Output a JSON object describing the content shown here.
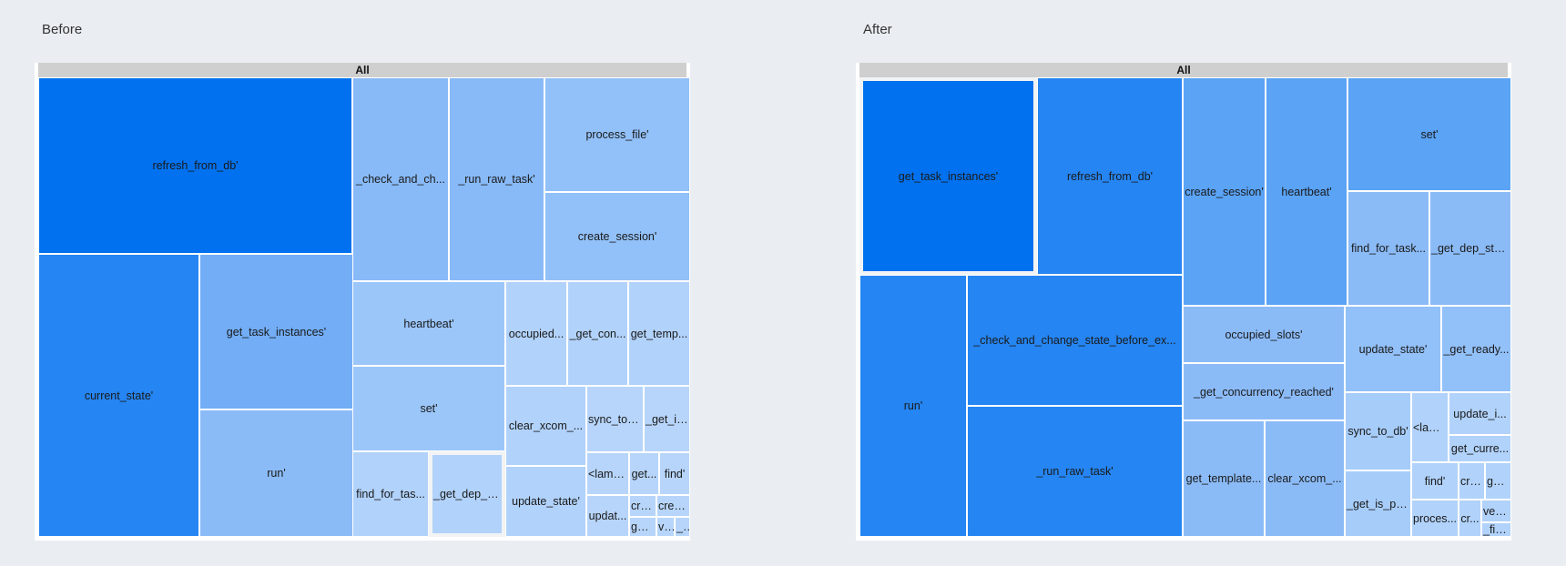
{
  "header_label": "All",
  "chart_data": [
    {
      "type": "treemap",
      "title": "Before",
      "root": "All",
      "nodes": [
        {
          "label": "refresh_from_db'",
          "color": "#0171ef"
        },
        {
          "label": "current_state'",
          "color": "#2585f2"
        },
        {
          "label": "get_task_instances'",
          "color": "#72adf6"
        },
        {
          "label": "run'",
          "color": "#8bbbf7"
        },
        {
          "label": "_check_and_ch...",
          "color": "#88baf7"
        },
        {
          "label": "_run_raw_task'",
          "color": "#88baf7"
        },
        {
          "label": "process_file'",
          "color": "#92c0f8"
        },
        {
          "label": "create_session'",
          "color": "#92c0f8"
        },
        {
          "label": "heartbeat'",
          "color": "#9bc6f9"
        },
        {
          "label": "set'",
          "color": "#9bc6f9"
        },
        {
          "label": "find_for_tas...",
          "color": "#b1d2fa"
        },
        {
          "label": "_get_dep_st...",
          "color": "#b1d2fa",
          "selected": true
        },
        {
          "label": "occupied...",
          "color": "#b1d2fa"
        },
        {
          "label": "_get_con...",
          "color": "#b1d2fa"
        },
        {
          "label": "get_temp...",
          "color": "#b1d2fa"
        },
        {
          "label": "clear_xcom_...",
          "color": "#b1d2fa"
        },
        {
          "label": "update_state'",
          "color": "#b1d2fa"
        },
        {
          "label": "sync_to_...",
          "color": "#b7d5fa"
        },
        {
          "label": "_get_is...",
          "color": "#b7d5fa"
        },
        {
          "label": "<lamb...",
          "color": "#b7d5fa"
        },
        {
          "label": "get...",
          "color": "#b7d5fa"
        },
        {
          "label": "find'",
          "color": "#b7d5fa"
        },
        {
          "label": "updat...",
          "color": "#b7d5fa"
        },
        {
          "label": "cre...",
          "color": "#b7d5fa"
        },
        {
          "label": "crea...",
          "color": "#b7d5fa"
        },
        {
          "label": "get...",
          "color": "#b7d5fa"
        },
        {
          "label": "ve...",
          "color": "#b7d5fa"
        },
        {
          "label": "_...",
          "color": "#b7d5fa"
        }
      ]
    },
    {
      "type": "treemap",
      "title": "After",
      "root": "All",
      "nodes": [
        {
          "label": "get_task_instances'",
          "color": "#0171ef",
          "selected": true
        },
        {
          "label": "refresh_from_db'",
          "color": "#2585f2"
        },
        {
          "label": "run'",
          "color": "#2585f2"
        },
        {
          "label": "_check_and_change_state_before_ex...",
          "color": "#2585f2"
        },
        {
          "label": "_run_raw_task'",
          "color": "#2585f2"
        },
        {
          "label": "create_session'",
          "color": "#5aa3f5"
        },
        {
          "label": "heartbeat'",
          "color": "#5aa3f5"
        },
        {
          "label": "set'",
          "color": "#5aa3f5"
        },
        {
          "label": "find_for_task...",
          "color": "#8bbbf7"
        },
        {
          "label": "_get_dep_sta...",
          "color": "#8bbbf7"
        },
        {
          "label": "occupied_slots'",
          "color": "#8bbbf7"
        },
        {
          "label": "_get_concurrency_reached'",
          "color": "#8bbbf7"
        },
        {
          "label": "get_template...",
          "color": "#8bbbf7"
        },
        {
          "label": "clear_xcom_...",
          "color": "#8bbbf7"
        },
        {
          "label": "update_state'",
          "color": "#92c0f8"
        },
        {
          "label": "_get_ready...",
          "color": "#92c0f8"
        },
        {
          "label": "sync_to_db'",
          "color": "#a6ccf9"
        },
        {
          "label": "_get_is_pa...",
          "color": "#a6ccf9"
        },
        {
          "label": "<lam...",
          "color": "#b1d2fa"
        },
        {
          "label": "update_i...",
          "color": "#b1d2fa"
        },
        {
          "label": "get_curre...",
          "color": "#b1d2fa"
        },
        {
          "label": "find'",
          "color": "#b1d2fa"
        },
        {
          "label": "cre...",
          "color": "#b1d2fa"
        },
        {
          "label": "get...",
          "color": "#b1d2fa"
        },
        {
          "label": "proces...",
          "color": "#b1d2fa"
        },
        {
          "label": "cr...",
          "color": "#b1d2fa"
        },
        {
          "label": "veri...",
          "color": "#b1d2fa"
        },
        {
          "label": "_fin...",
          "color": "#b1d2fa"
        }
      ]
    }
  ]
}
